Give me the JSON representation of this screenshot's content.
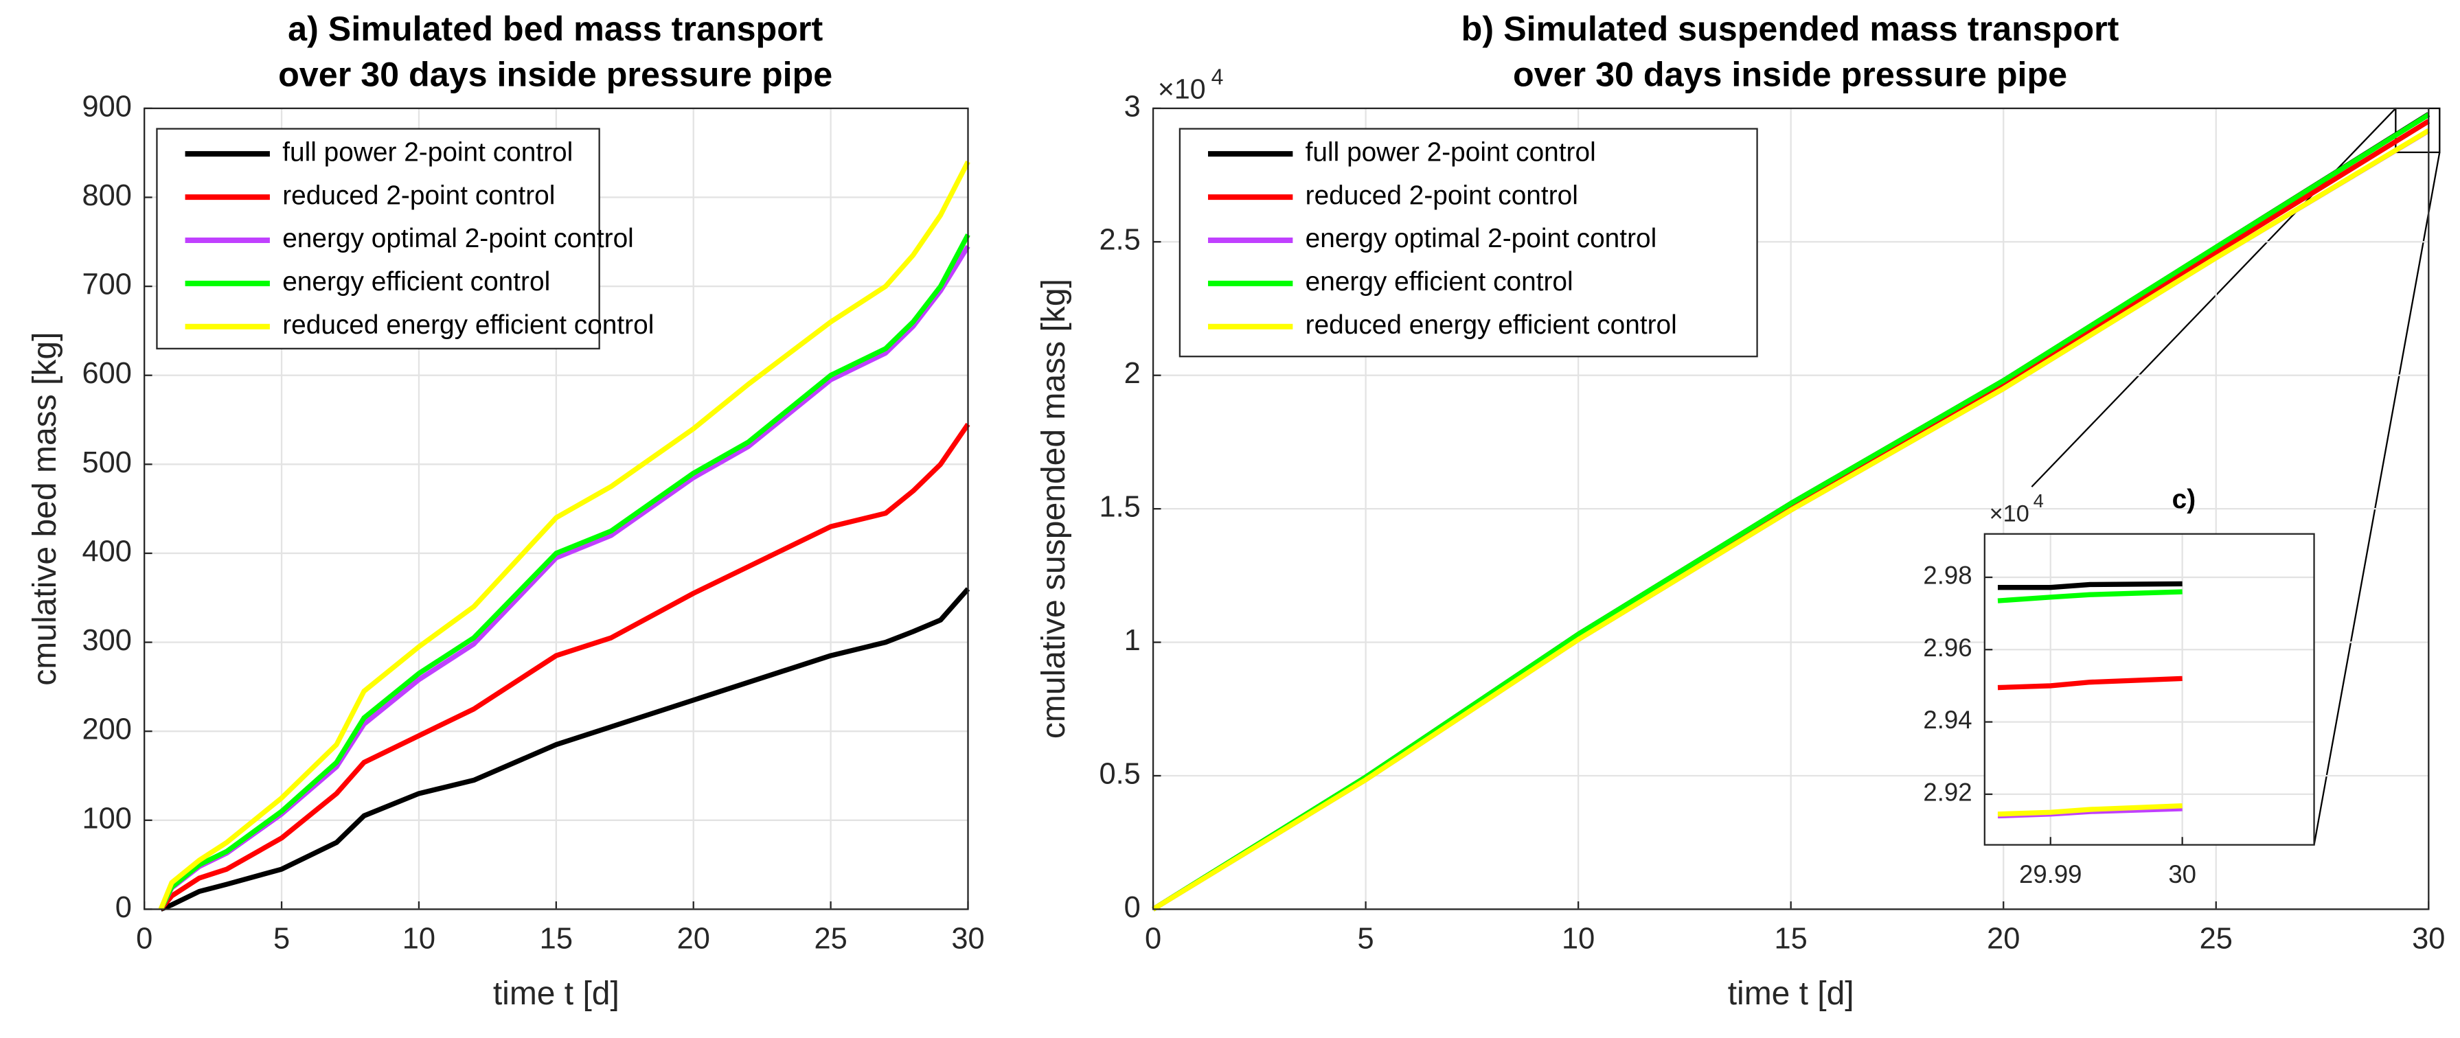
{
  "chart_data": [
    {
      "type": "line",
      "title": [
        "a) Simulated bed mass transport",
        "over 30 days inside pressure pipe"
      ],
      "xlabel": "time t [d]",
      "ylabel": "cmulative bed mass [kg]",
      "x": [
        0.6,
        1,
        2,
        3,
        5,
        7,
        8,
        10,
        12,
        15,
        17,
        20,
        22,
        25,
        27,
        28,
        29,
        30
      ],
      "series": [
        {
          "name": "full power 2-point control",
          "color": "#000000",
          "values": [
            0,
            5,
            20,
            28,
            45,
            75,
            105,
            130,
            145,
            185,
            205,
            235,
            255,
            285,
            300,
            312,
            325,
            360
          ]
        },
        {
          "name": "reduced 2-point control",
          "color": "#ff0000",
          "values": [
            0,
            15,
            35,
            45,
            80,
            130,
            165,
            195,
            225,
            285,
            305,
            355,
            385,
            430,
            445,
            470,
            500,
            545
          ]
        },
        {
          "name": "energy optimal 2-point control",
          "color": "#c040ff",
          "values": [
            0,
            24,
            48,
            63,
            107,
            160,
            208,
            258,
            298,
            395,
            420,
            485,
            520,
            595,
            625,
            655,
            695,
            745
          ]
        },
        {
          "name": "energy efficient control",
          "color": "#00ff00",
          "values": [
            0,
            25,
            50,
            65,
            110,
            165,
            215,
            265,
            305,
            400,
            425,
            490,
            525,
            600,
            630,
            660,
            700,
            758
          ]
        },
        {
          "name": "reduced energy efficient control",
          "color": "#ffff00",
          "values": [
            0,
            30,
            55,
            75,
            125,
            185,
            245,
            295,
            340,
            440,
            475,
            540,
            590,
            660,
            700,
            735,
            780,
            840
          ]
        }
      ],
      "xlim": [
        0,
        30
      ],
      "xticks": [
        0,
        5,
        10,
        15,
        20,
        25,
        30
      ],
      "ylim": [
        0,
        900
      ],
      "yticks": [
        0,
        100,
        200,
        300,
        400,
        500,
        600,
        700,
        800,
        900
      ],
      "grid": true,
      "legend": "upper left"
    },
    {
      "type": "line",
      "title": [
        "b) Simulated suspended mass transport",
        "over 30 days inside pressure pipe"
      ],
      "xlabel": "time t [d]",
      "ylabel": "cmulative suspended mass [kg]",
      "y_multiplier": "×10",
      "y_multiplier_power": "4",
      "x": [
        0,
        5,
        10,
        15,
        20,
        25,
        30
      ],
      "series": [
        {
          "name": "full power 2-point control",
          "color": "#000000",
          "values": [
            0,
            4950,
            10300,
            15200,
            19800,
            24800,
            29780
          ]
        },
        {
          "name": "reduced 2-point control",
          "color": "#ff0000",
          "values": [
            0,
            4900,
            10200,
            15050,
            19650,
            24600,
            29520
          ]
        },
        {
          "name": "energy optimal 2-point control",
          "color": "#c040ff",
          "values": [
            0,
            4850,
            10100,
            14950,
            19500,
            24400,
            29160
          ]
        },
        {
          "name": "energy efficient control",
          "color": "#00ff00",
          "values": [
            0,
            4950,
            10300,
            15200,
            19800,
            24800,
            29760
          ]
        },
        {
          "name": "reduced energy efficient control",
          "color": "#ffff00",
          "values": [
            0,
            4850,
            10100,
            14950,
            19500,
            24400,
            29170
          ]
        }
      ],
      "xlim": [
        0,
        30
      ],
      "xticks": [
        0,
        5,
        10,
        15,
        20,
        25,
        30
      ],
      "ylim": [
        0,
        30000
      ],
      "yticks": [
        0,
        {
          "value": 5000,
          "label": "0.5"
        },
        {
          "value": 10000,
          "label": "1"
        },
        {
          "value": 15000,
          "label": "1.5"
        },
        {
          "value": 20000,
          "label": "2"
        },
        {
          "value": 25000,
          "label": "2.5"
        },
        {
          "value": 30000,
          "label": "3"
        }
      ],
      "grid": true,
      "legend": "upper left"
    },
    {
      "type": "line",
      "title": [
        "c)"
      ],
      "y_multiplier": "×10",
      "y_multiplier_power": "4",
      "x": [
        29.986,
        29.99,
        29.993,
        30
      ],
      "series": [
        {
          "color": "#000000",
          "values": [
            29772,
            29772,
            29780,
            29782
          ]
        },
        {
          "color": "#ff0000",
          "values": [
            29495,
            29500,
            29510,
            29520
          ]
        },
        {
          "color": "#c040ff",
          "values": [
            29140,
            29145,
            29152,
            29160
          ]
        },
        {
          "color": "#00ff00",
          "values": [
            29735,
            29745,
            29752,
            29760
          ]
        },
        {
          "color": "#ffff00",
          "values": [
            29145,
            29150,
            29158,
            29168
          ]
        }
      ],
      "xlim": [
        29.985,
        30.01
      ],
      "xticks": [
        29.99,
        30
      ],
      "ylim": [
        29060,
        29920
      ],
      "yticks": [
        {
          "value": 29200,
          "label": "2.92"
        },
        {
          "value": 29400,
          "label": "2.94"
        },
        {
          "value": 29600,
          "label": "2.96"
        },
        {
          "value": 29800,
          "label": "2.98"
        }
      ],
      "grid": true
    }
  ]
}
